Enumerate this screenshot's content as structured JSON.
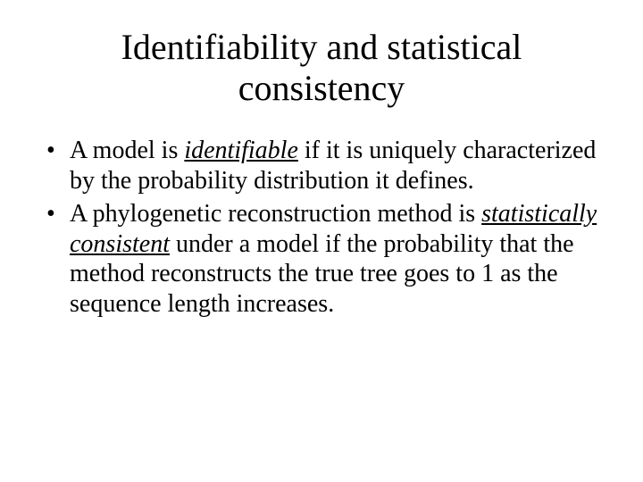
{
  "slide": {
    "title": "Identifiability and statistical consistency",
    "bullets": [
      {
        "pre": "A model is ",
        "emph": "identifiable",
        "post": " if it is uniquely characterized by the probability distribution it defines."
      },
      {
        "pre": "A phylogenetic reconstruction method is ",
        "emph": "statistically consistent",
        "post": " under a model if the probability that the method reconstructs the true tree goes to 1 as the sequence length increases."
      }
    ]
  },
  "style": {
    "background_color": "#ffffff",
    "text_color": "#000000",
    "title_fontsize": 40,
    "body_fontsize": 28,
    "font_family": "Times New Roman",
    "emph_style": "italic underline"
  }
}
